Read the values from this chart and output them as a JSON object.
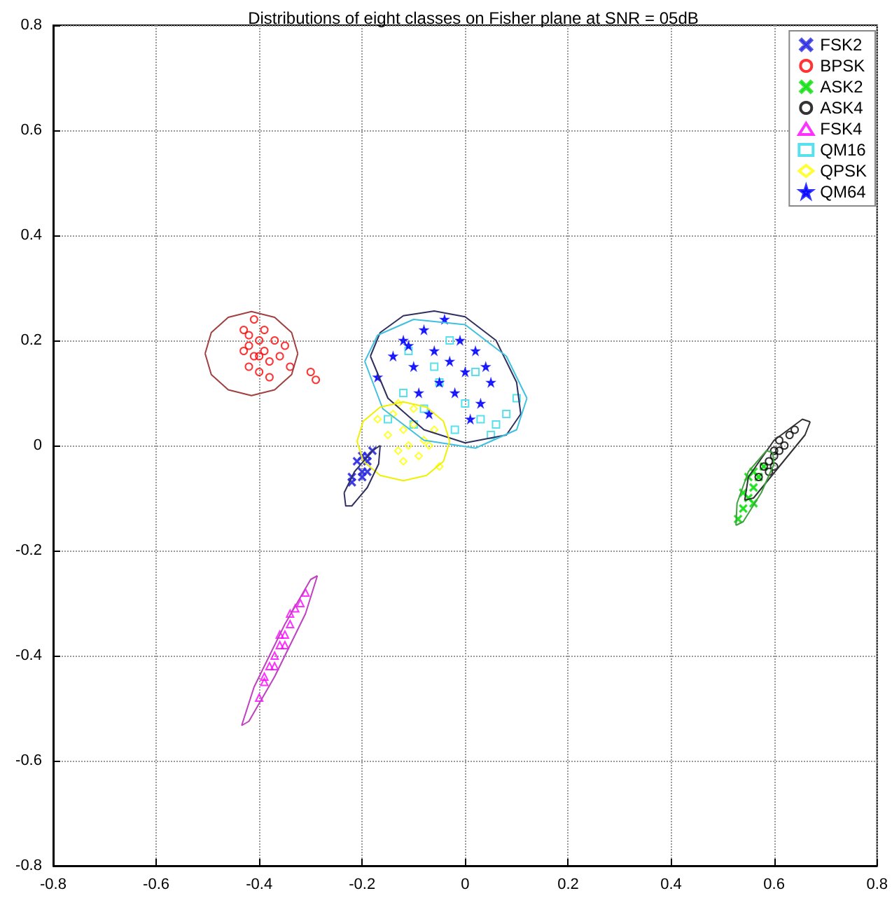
{
  "chart_data": {
    "type": "scatter",
    "title": "Distributions of eight classes on Fisher plane at SNR = 05dB",
    "xlim": [
      -0.8,
      0.8
    ],
    "ylim": [
      -0.8,
      0.8
    ],
    "xticks": [
      -0.8,
      -0.6,
      -0.4,
      -0.2,
      0,
      0.2,
      0.4,
      0.6,
      0.8
    ],
    "yticks": [
      -0.8,
      -0.6,
      -0.4,
      -0.2,
      0,
      0.2,
      0.4,
      0.6,
      0.8
    ],
    "grid": true,
    "legend": "top right",
    "series": [
      {
        "name": "FSK2",
        "color": "#2a2ae0",
        "marker": "cross",
        "x": [
          -0.22,
          -0.2,
          -0.19,
          -0.21,
          -0.2,
          -0.19,
          -0.18,
          -0.22,
          -0.2,
          -0.19
        ],
        "values": [
          -0.07,
          -0.06,
          -0.03,
          -0.03,
          -0.02,
          -0.05,
          -0.01,
          -0.06,
          -0.05,
          -0.02
        ]
      },
      {
        "name": "BPSK",
        "color": "#ff0000",
        "marker": "circle",
        "x": [
          -0.43,
          -0.42,
          -0.41,
          -0.4,
          -0.42,
          -0.39,
          -0.41,
          -0.43,
          -0.4,
          -0.38,
          -0.42,
          -0.39,
          -0.37,
          -0.36,
          -0.35,
          -0.38,
          -0.34,
          -0.3,
          -0.29,
          -0.4
        ],
        "values": [
          0.22,
          0.19,
          0.17,
          0.2,
          0.15,
          0.18,
          0.24,
          0.18,
          0.14,
          0.16,
          0.21,
          0.22,
          0.2,
          0.17,
          0.19,
          0.13,
          0.15,
          0.14,
          0.125,
          0.17
        ]
      },
      {
        "name": "ASK2",
        "color": "#10e010",
        "marker": "cross",
        "x": [
          0.53,
          0.54,
          0.55,
          0.56,
          0.55,
          0.57,
          0.56,
          0.58,
          0.54,
          0.56
        ],
        "values": [
          -0.14,
          -0.12,
          -0.1,
          -0.08,
          -0.06,
          -0.06,
          -0.11,
          -0.04,
          -0.09,
          -0.05
        ]
      },
      {
        "name": "ASK4",
        "color": "#000000",
        "marker": "circle",
        "x": [
          0.57,
          0.58,
          0.59,
          0.6,
          0.61,
          0.62,
          0.6,
          0.59,
          0.61,
          0.63,
          0.64,
          0.6
        ],
        "values": [
          -0.06,
          -0.04,
          -0.03,
          -0.02,
          -0.01,
          0.0,
          -0.04,
          -0.05,
          0.01,
          0.02,
          0.03,
          -0.01
        ]
      },
      {
        "name": "FSK4",
        "color": "#ff00ff",
        "marker": "triangle",
        "x": [
          -0.4,
          -0.39,
          -0.38,
          -0.37,
          -0.36,
          -0.35,
          -0.34,
          -0.33,
          -0.32,
          -0.31,
          -0.37,
          -0.35,
          -0.39,
          -0.36,
          -0.34
        ],
        "values": [
          -0.48,
          -0.45,
          -0.42,
          -0.4,
          -0.38,
          -0.36,
          -0.34,
          -0.31,
          -0.3,
          -0.28,
          -0.42,
          -0.38,
          -0.44,
          -0.36,
          -0.32
        ]
      },
      {
        "name": "QM16",
        "color": "#30d8e8",
        "marker": "square",
        "x": [
          -0.15,
          -0.12,
          -0.1,
          -0.08,
          -0.05,
          -0.02,
          0.0,
          0.03,
          0.05,
          0.08,
          0.1,
          -0.06,
          -0.11,
          0.02,
          0.06,
          -0.03
        ],
        "values": [
          0.05,
          0.1,
          0.04,
          0.07,
          0.12,
          0.03,
          0.08,
          0.05,
          0.02,
          0.06,
          0.09,
          0.15,
          0.18,
          0.14,
          0.04,
          0.2
        ]
      },
      {
        "name": "QPSK",
        "color": "#ffff00",
        "marker": "diamond",
        "x": [
          -0.17,
          -0.15,
          -0.14,
          -0.13,
          -0.12,
          -0.11,
          -0.1,
          -0.09,
          -0.08,
          -0.06,
          -0.05,
          -0.13,
          -0.1,
          -0.12,
          -0.07
        ],
        "values": [
          0.05,
          0.02,
          0.06,
          -0.01,
          0.03,
          0.0,
          0.04,
          -0.02,
          0.01,
          0.03,
          -0.04,
          0.08,
          0.07,
          -0.03,
          0.0
        ]
      },
      {
        "name": "QM64",
        "color": "#0000ff",
        "marker": "star",
        "x": [
          -0.17,
          -0.14,
          -0.12,
          -0.1,
          -0.08,
          -0.06,
          -0.05,
          -0.04,
          -0.03,
          -0.02,
          0.0,
          0.02,
          0.03,
          0.05,
          -0.09,
          -0.07,
          -0.01,
          0.01,
          -0.11,
          0.04
        ],
        "values": [
          0.13,
          0.17,
          0.2,
          0.15,
          0.22,
          0.18,
          0.12,
          0.24,
          0.16,
          0.1,
          0.14,
          0.18,
          0.08,
          0.12,
          0.1,
          0.06,
          0.2,
          0.05,
          0.19,
          0.15
        ]
      },
      {
        "type": "line",
        "color": "#a04040",
        "marker": "none",
        "line_style": "solid",
        "x": [
          -0.505,
          -0.493,
          -0.46,
          -0.415,
          -0.37,
          -0.337,
          -0.325
        ],
        "values": [
          0.175,
          0.215,
          0.244,
          0.255,
          0.244,
          0.215,
          0.175
        ]
      },
      {
        "type": "line",
        "color": "#a04040",
        "marker": "none",
        "line_style": "solid",
        "x": [
          -0.505,
          -0.493,
          -0.46,
          -0.415,
          -0.37,
          -0.337,
          -0.325
        ],
        "values": [
          0.175,
          0.135,
          0.106,
          0.095,
          0.106,
          0.135,
          0.175
        ]
      },
      {
        "type": "line",
        "color": "#303060",
        "marker": "none",
        "line_style": "solid",
        "x": [
          -0.184,
          -0.165,
          -0.12,
          -0.06,
          0.0,
          0.06,
          0.1,
          0.108
        ],
        "values": [
          0.17,
          0.215,
          0.247,
          0.256,
          0.245,
          0.2,
          0.12,
          0.06
        ]
      },
      {
        "type": "line",
        "color": "#303060",
        "marker": "none",
        "line_style": "solid",
        "x": [
          -0.184,
          -0.15,
          -0.08,
          0.0,
          0.08,
          0.108
        ],
        "values": [
          0.17,
          0.09,
          0.03,
          0.005,
          0.02,
          0.06
        ]
      },
      {
        "type": "line",
        "color": "#40c0e0",
        "marker": "none",
        "line_style": "solid",
        "x": [
          -0.195,
          -0.17,
          -0.1,
          0.0,
          0.08,
          0.12
        ],
        "values": [
          0.16,
          0.21,
          0.24,
          0.23,
          0.17,
          0.09
        ]
      },
      {
        "type": "line",
        "color": "#40c0e0",
        "marker": "none",
        "line_style": "solid",
        "x": [
          -0.195,
          -0.16,
          -0.08,
          0.02,
          0.1,
          0.12
        ],
        "values": [
          0.16,
          0.07,
          0.01,
          -0.005,
          0.03,
          0.09
        ]
      },
      {
        "type": "line",
        "color": "#f0f000",
        "marker": "none",
        "line_style": "solid",
        "x": [
          -0.21,
          -0.198,
          -0.165,
          -0.12,
          -0.075,
          -0.042,
          -0.03
        ],
        "values": [
          0.008,
          0.046,
          0.073,
          0.083,
          0.073,
          0.046,
          0.008
        ]
      },
      {
        "type": "line",
        "color": "#f0f000",
        "marker": "none",
        "line_style": "solid",
        "x": [
          -0.21,
          -0.198,
          -0.165,
          -0.12,
          -0.075,
          -0.042,
          -0.03
        ],
        "values": [
          0.008,
          -0.03,
          -0.057,
          -0.067,
          -0.057,
          -0.03,
          0.008
        ]
      },
      {
        "type": "line",
        "color": "#303060",
        "marker": "none",
        "line_style": "solid",
        "x": [
          -0.235,
          -0.215,
          -0.18,
          -0.165
        ],
        "values": [
          -0.09,
          -0.05,
          -0.01,
          0.0
        ]
      },
      {
        "type": "line",
        "color": "#303060",
        "marker": "none",
        "line_style": "solid",
        "x": [
          -0.235,
          -0.232,
          -0.22,
          -0.19,
          -0.168,
          -0.165
        ],
        "values": [
          -0.09,
          -0.115,
          -0.115,
          -0.08,
          -0.035,
          0.0
        ]
      },
      {
        "type": "line",
        "color": "#c040c0",
        "marker": "none",
        "line_style": "solid",
        "x": [
          -0.434,
          -0.41,
          -0.35,
          -0.3,
          -0.287
        ],
        "values": [
          -0.533,
          -0.46,
          -0.34,
          -0.255,
          -0.248
        ]
      },
      {
        "type": "line",
        "color": "#c040c0",
        "marker": "none",
        "line_style": "solid",
        "x": [
          -0.434,
          -0.42,
          -0.37,
          -0.31,
          -0.287
        ],
        "values": [
          -0.533,
          -0.525,
          -0.44,
          -0.32,
          -0.248
        ]
      },
      {
        "type": "line",
        "color": "#303030",
        "marker": "none",
        "line_style": "solid",
        "x": [
          0.543,
          0.55,
          0.6,
          0.655,
          0.67
        ],
        "values": [
          -0.104,
          -0.06,
          0.01,
          0.05,
          0.045
        ]
      },
      {
        "type": "line",
        "color": "#303030",
        "marker": "none",
        "line_style": "solid",
        "x": [
          0.543,
          0.56,
          0.61,
          0.66,
          0.67
        ],
        "values": [
          -0.104,
          -0.1,
          -0.04,
          0.02,
          0.045
        ]
      },
      {
        "type": "line",
        "color": "#40a040",
        "marker": "none",
        "line_style": "solid",
        "x": [
          0.526,
          0.528,
          0.55,
          0.585,
          0.597,
          0.6
        ],
        "values": [
          -0.152,
          -0.11,
          -0.05,
          -0.01,
          -0.013,
          -0.035
        ]
      },
      {
        "type": "line",
        "color": "#40a040",
        "marker": "none",
        "line_style": "solid",
        "x": [
          0.526,
          0.54,
          0.575,
          0.6
        ],
        "values": [
          -0.152,
          -0.145,
          -0.09,
          -0.035
        ]
      }
    ]
  }
}
